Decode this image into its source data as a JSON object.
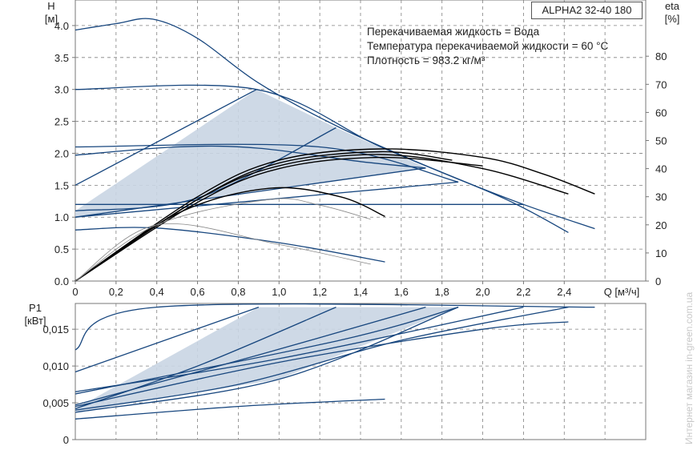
{
  "model": "ALPHA2 32-40 180",
  "notes": [
    "Перекачиваемая жидкость = Вода",
    "Температура перекачиваемой жидкости = 60 °C",
    "Плотность = 983.2 кг/м³"
  ],
  "watermark": "Интернет магазин in-green.com.ua",
  "colors": {
    "curve": "#17467e",
    "efficiency": "#000000",
    "region_fill": "#c9d5e3",
    "grid": "#808080"
  },
  "chart_data": [
    {
      "type": "line",
      "name": "head",
      "ylabel_lines": [
        "H",
        "[м]"
      ],
      "y2label_lines": [
        "eta",
        "[%]"
      ],
      "xlabel": "Q [м³/ч]",
      "xlim": [
        0,
        2.8
      ],
      "ylim": [
        0,
        4.4
      ],
      "y2lim": [
        0,
        100
      ],
      "x_ticks": [
        "0",
        "0,2",
        "0,4",
        "0,6",
        "0,8",
        "1,0",
        "1,2",
        "1,4",
        "1,6",
        "1,8",
        "2,0",
        "2,2",
        "2,4"
      ],
      "y_ticks": [
        "0.0",
        "0.5",
        "1.0",
        "1.5",
        "2.0",
        "2.5",
        "3.0",
        "3.5",
        "4.0"
      ],
      "y2_ticks": [
        "0",
        "10",
        "20",
        "30",
        "40",
        "50",
        "60",
        "70",
        "80"
      ],
      "grid": true,
      "region": [
        [
          0,
          1.1
        ],
        [
          0.89,
          3.0
        ],
        [
          1.28,
          2.4
        ],
        [
          1.88,
          1.55
        ],
        [
          1.72,
          1.77
        ],
        [
          0,
          1.0
        ]
      ],
      "series": [
        {
          "points": [
            [
              0,
              3.93
            ],
            [
              0.2,
              4.03
            ],
            [
              0.38,
              4.1
            ],
            [
              0.6,
              3.8
            ],
            [
              0.9,
              3.1
            ],
            [
              1.3,
              2.4
            ],
            [
              1.8,
              1.7
            ],
            [
              2.2,
              1.2
            ],
            [
              2.55,
              0.82
            ]
          ]
        },
        {
          "points": [
            [
              0,
              3.0
            ],
            [
              0.89,
              3.0
            ],
            [
              1.5,
              2.1
            ],
            [
              2.1,
              1.3
            ],
            [
              2.42,
              0.76
            ]
          ]
        },
        {
          "points": [
            [
              0,
              2.1
            ],
            [
              1.2,
              2.1
            ],
            [
              1.88,
              1.55
            ]
          ]
        },
        {
          "points": [
            [
              0,
              1.97
            ],
            [
              0.5,
              2.1
            ],
            [
              0.9,
              2.08
            ],
            [
              1.4,
              1.87
            ],
            [
              1.72,
              1.77
            ]
          ]
        },
        {
          "points": [
            [
              0,
              1.5
            ],
            [
              0.89,
              3.0
            ]
          ]
        },
        {
          "points": [
            [
              0,
              1.1
            ],
            [
              0.6,
              1.3
            ],
            [
              1.28,
              2.4
            ]
          ]
        },
        {
          "points": [
            [
              0,
              1.2
            ],
            [
              2.2,
              1.2
            ]
          ]
        },
        {
          "points": [
            [
              0,
              1.0
            ],
            [
              1.88,
              1.55
            ]
          ]
        },
        {
          "points": [
            [
              0,
              1.0
            ],
            [
              1.72,
              1.77
            ]
          ]
        },
        {
          "points": [
            [
              0,
              0.8
            ],
            [
              0.4,
              0.83
            ],
            [
              1.0,
              0.6
            ],
            [
              1.52,
              0.3
            ]
          ]
        }
      ],
      "efficiency_series": [
        {
          "points": [
            [
              0,
              0
            ],
            [
              0.6,
              30
            ],
            [
              1.0,
              43
            ],
            [
              1.5,
              47
            ],
            [
              2.0,
              44
            ],
            [
              2.3,
              38
            ],
            [
              2.55,
              31
            ]
          ]
        },
        {
          "points": [
            [
              0,
              0
            ],
            [
              0.6,
              29
            ],
            [
              1.0,
              41
            ],
            [
              1.5,
              45
            ],
            [
              2.0,
              40
            ],
            [
              2.42,
              31
            ]
          ]
        },
        {
          "points": [
            [
              0,
              0
            ],
            [
              0.6,
              28
            ],
            [
              1.0,
              40
            ],
            [
              1.5,
              44
            ],
            [
              2.0,
              41
            ]
          ]
        },
        {
          "points": [
            [
              0,
              0
            ],
            [
              0.6,
              29
            ],
            [
              1.0,
              42
            ],
            [
              1.5,
              46
            ],
            [
              1.85,
              43
            ]
          ]
        },
        {
          "points": [
            [
              0,
              0
            ],
            [
              0.5,
              24
            ],
            [
              0.95,
              33
            ],
            [
              1.3,
              30
            ],
            [
              1.52,
              23
            ]
          ]
        },
        {
          "points": [
            [
              0,
              0
            ],
            [
              0.4,
              20
            ],
            [
              0.95,
              29
            ],
            [
              1.2,
              27
            ],
            [
              1.45,
              22
            ]
          ],
          "thin": true
        },
        {
          "points": [
            [
              0,
              0
            ],
            [
              0.4,
              20
            ],
            [
              1.0,
              13
            ],
            [
              1.45,
              6
            ]
          ],
          "thin": true
        }
      ]
    },
    {
      "type": "line",
      "name": "power",
      "ylabel_lines": [
        "P1",
        "[кВт]"
      ],
      "xlim": [
        0,
        2.8
      ],
      "ylim": [
        0,
        0.0185
      ],
      "y_ticks": [
        "0",
        "0,005",
        "0,010",
        "0,015"
      ],
      "grid": true,
      "region": [
        [
          0,
          0.0042
        ],
        [
          0.9,
          0.018
        ],
        [
          1.88,
          0.018
        ],
        [
          1.0,
          0.0082
        ],
        [
          0,
          0.0037
        ]
      ],
      "series": [
        {
          "points": [
            [
              0,
              0.0122
            ],
            [
              0.4,
              0.018
            ],
            [
              2.55,
              0.018
            ]
          ]
        },
        {
          "points": [
            [
              0,
              0.0092
            ],
            [
              0.9,
              0.018
            ]
          ]
        },
        {
          "points": [
            [
              0,
              0.0042
            ],
            [
              0.6,
              0.01
            ],
            [
              1.28,
              0.018
            ]
          ]
        },
        {
          "points": [
            [
              0,
              0.0062
            ],
            [
              1.3,
              0.0135
            ],
            [
              1.88,
              0.018
            ]
          ]
        },
        {
          "points": [
            [
              0,
              0.0065
            ],
            [
              1.0,
              0.011
            ],
            [
              2.2,
              0.018
            ]
          ]
        },
        {
          "points": [
            [
              0,
              0.0047
            ],
            [
              0.9,
              0.0115
            ],
            [
              1.72,
              0.018
            ]
          ]
        },
        {
          "points": [
            [
              0,
              0.0037
            ],
            [
              1.0,
              0.0082
            ],
            [
              1.88,
              0.018
            ]
          ]
        },
        {
          "points": [
            [
              0,
              0.004
            ],
            [
              0.8,
              0.0075
            ],
            [
              1.6,
              0.0135
            ],
            [
              2.42,
              0.018
            ]
          ]
        },
        {
          "points": [
            [
              0,
              0.0045
            ],
            [
              1.0,
              0.0105
            ],
            [
              2.0,
              0.015
            ],
            [
              2.42,
              0.016
            ]
          ]
        },
        {
          "points": [
            [
              0,
              0.0028
            ],
            [
              0.8,
              0.0045
            ],
            [
              1.52,
              0.0055
            ]
          ]
        }
      ]
    }
  ]
}
